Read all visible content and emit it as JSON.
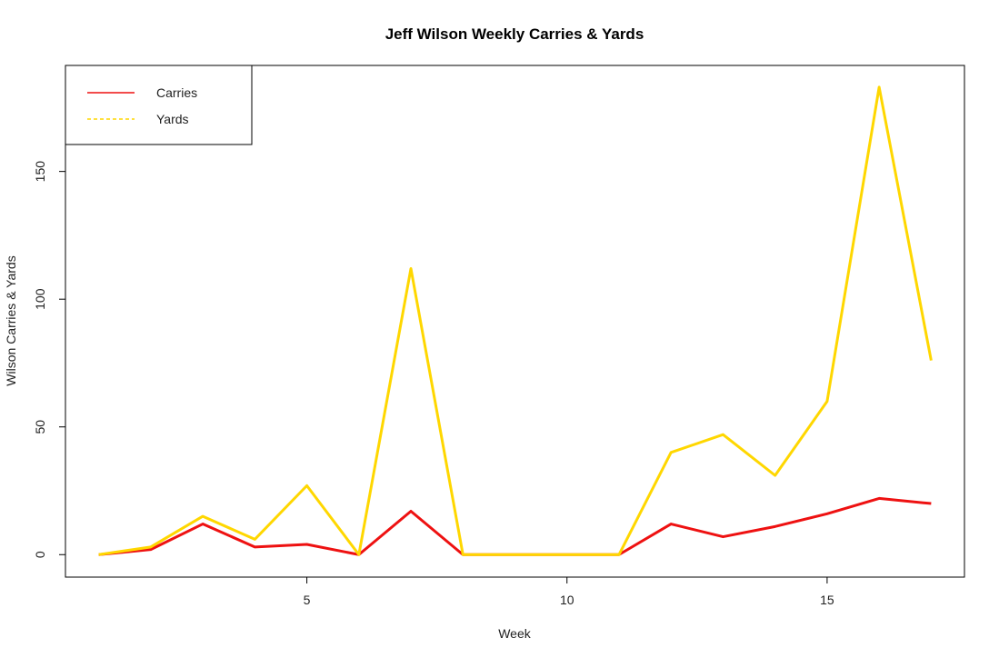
{
  "chart_data": {
    "type": "line",
    "title": "Jeff Wilson Weekly Carries & Yards",
    "xlabel": "Week",
    "ylabel": "Wilson Carries & Yards",
    "x": [
      1,
      2,
      3,
      4,
      5,
      6,
      7,
      8,
      9,
      10,
      11,
      12,
      13,
      14,
      15,
      16,
      17
    ],
    "xlim": [
      0.36,
      17.64
    ],
    "ylim": [
      -8.8,
      191.5
    ],
    "xticks": [
      5,
      10,
      15
    ],
    "yticks": [
      0,
      50,
      100,
      150
    ],
    "series": [
      {
        "name": "Carries",
        "color": "#ee1111",
        "dash": "solid",
        "values": [
          0,
          2,
          12,
          3,
          4,
          0,
          17,
          0,
          0,
          0,
          0,
          12,
          7,
          11,
          16,
          22,
          20
        ]
      },
      {
        "name": "Yards",
        "color": "#ffd700",
        "dash": "dashed",
        "values": [
          0,
          3,
          15,
          6,
          27,
          0,
          112,
          0,
          0,
          0,
          0,
          40,
          47,
          31,
          60,
          183,
          76
        ]
      }
    ],
    "legend": {
      "position": "top-left"
    },
    "grid": false
  }
}
